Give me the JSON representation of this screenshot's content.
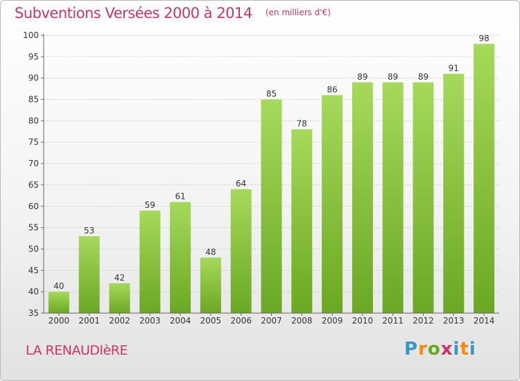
{
  "colors": {
    "accent": "#cc3366",
    "bar_light": "#a6d95a",
    "bar_dark": "#6aa823",
    "axis": "#666666",
    "grid": "#cccccc",
    "logo": [
      "#3399cc",
      "#ff8800",
      "#66aa22",
      "#cc3366",
      "#3399cc",
      "#ff8800"
    ]
  },
  "header": {
    "title": "Subventions Versées 2000 à 2014",
    "unit": "(en milliers d'€)"
  },
  "footer": {
    "place": "LA RENAUDIèRE",
    "logo_letters": [
      "P",
      "r",
      "o",
      "x",
      "i",
      "t",
      "i"
    ]
  },
  "chart_data": {
    "type": "bar",
    "title": "Subventions Versées 2000 à 2014",
    "subtitle": "(en milliers d'€)",
    "categories": [
      "2000",
      "2001",
      "2002",
      "2003",
      "2004",
      "2005",
      "2006",
      "2007",
      "2008",
      "2009",
      "2010",
      "2011",
      "2012",
      "2013",
      "2014"
    ],
    "values": [
      40,
      53,
      42,
      59,
      61,
      48,
      64,
      85,
      78,
      86,
      89,
      89,
      89,
      91,
      98
    ],
    "ylim": [
      35,
      100
    ],
    "yticks": [
      35,
      40,
      45,
      50,
      55,
      60,
      65,
      70,
      75,
      80,
      85,
      90,
      95,
      100
    ],
    "grid": true,
    "data_labels": true
  }
}
